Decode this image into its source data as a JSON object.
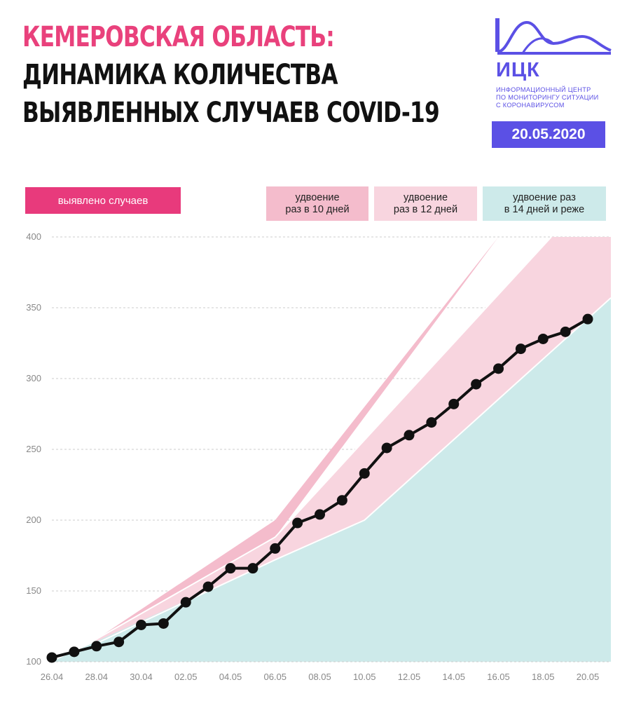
{
  "title": {
    "line1": "КЕМЕРОВСКАЯ ОБЛАСТЬ:",
    "line2": "ДИНАМИКА КОЛИЧЕСТВА",
    "line3": "ВЫЯВЛЕННЫХ СЛУЧАЕВ COVID-19"
  },
  "logo": {
    "name": "ИЦК",
    "subtitle": [
      "ИНФОРМАЦИОННЫЙ ЦЕНТР",
      "ПО МОНИТОРИНГУ СИТУАЦИИ",
      "С КОРОНАВИРУСОМ"
    ]
  },
  "date": "20.05.2020",
  "legend": {
    "cases": "выявлено случаев",
    "doubling_10": [
      "удвоение",
      "раз в 10 дней"
    ],
    "doubling_12": [
      "удвоение",
      "раз в 12 дней"
    ],
    "doubling_14": [
      "удвоение раз",
      "в 14 дней и реже"
    ]
  },
  "colors": {
    "title_accent": "#e9417c",
    "brand": "#5b50e5",
    "cases": "#e83a7c",
    "band_10": "#f4bccc",
    "band_12": "#f8d5df",
    "band_14": "#cdeaea",
    "line": "#111111"
  },
  "chart_data": {
    "type": "line",
    "ylim": [
      100,
      400
    ],
    "yticks": [
      100,
      150,
      200,
      250,
      300,
      350,
      400
    ],
    "x_tick_labels": [
      "26.04",
      "28.04",
      "30.04",
      "02.05",
      "04.05",
      "06.05",
      "08.05",
      "10.05",
      "12.05",
      "14.05",
      "16.05",
      "18.05",
      "20.05"
    ],
    "x": [
      "26.04",
      "27.04",
      "28.04",
      "29.04",
      "30.04",
      "01.05",
      "02.05",
      "03.05",
      "04.05",
      "05.05",
      "06.05",
      "07.05",
      "08.05",
      "09.05",
      "10.05",
      "11.05",
      "12.05",
      "13.05",
      "14.05",
      "15.05",
      "16.05",
      "17.05",
      "18.05",
      "19.05",
      "20.05"
    ],
    "series": [
      {
        "name": "выявлено случаев",
        "values": [
          103,
          107,
          111,
          114,
          126,
          127,
          142,
          153,
          166,
          166,
          180,
          198,
          204,
          214,
          233,
          251,
          260,
          269,
          282,
          296,
          307,
          321,
          328,
          333,
          342
        ]
      }
    ],
    "bands": [
      {
        "name": "удвоение раз в 10 дней",
        "x": [
          "28.04",
          "06.05",
          "16.05",
          "20.05"
        ],
        "lower": [
          116,
          188,
          400,
          400
        ],
        "upper": [
          116,
          200,
          400,
          400
        ]
      },
      {
        "name": "удвоение раз в 12 дней",
        "x": [
          "28.04",
          "06.05",
          "10.05",
          "20.05",
          "20.05"
        ],
        "lower": [
          114,
          172,
          200,
          357,
          357
        ],
        "upper": [
          116,
          188,
          250,
          400,
          400
        ]
      },
      {
        "name": "удвоение раз в 14 дней и реже",
        "x": [
          "26.04",
          "06.05",
          "10.05",
          "20.05"
        ],
        "upper": [
          100,
          172,
          200,
          357
        ]
      }
    ]
  }
}
